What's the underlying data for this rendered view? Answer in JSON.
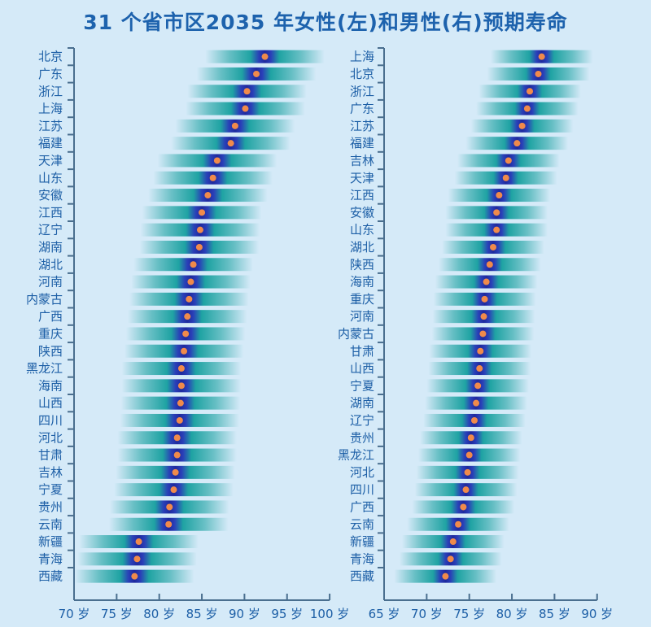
{
  "title": "31 个省市区2035 年女性(左)和男性(右)预期寿命",
  "colors": {
    "background": "#d5eaf8",
    "text": "#1d5fa6",
    "dot": "#f08a4b",
    "band_center": "#1e2fa8",
    "band_mid": "#1fa3a3"
  },
  "chart_data": [
    {
      "type": "scatter",
      "series_label": "女性(左)",
      "xlim": [
        70,
        100
      ],
      "x_ticks": [
        "70 岁",
        "75 岁",
        "80 岁",
        "85 岁",
        "90 岁",
        "95 岁",
        "100 岁"
      ],
      "tick_values": [
        70,
        75,
        80,
        85,
        90,
        95,
        100
      ],
      "categories": [
        "北京",
        "广东",
        "浙江",
        "上海",
        "江苏",
        "福建",
        "天津",
        "山东",
        "安徽",
        "江西",
        "辽宁",
        "湖南",
        "湖北",
        "河南",
        "内蒙古",
        "广西",
        "重庆",
        "陕西",
        "黑龙江",
        "海南",
        "山西",
        "四川",
        "河北",
        "甘肃",
        "吉林",
        "宁夏",
        "贵州",
        "云南",
        "新疆",
        "青海",
        "西藏"
      ],
      "values": [
        92.4,
        91.4,
        90.3,
        90.1,
        88.9,
        88.4,
        86.8,
        86.3,
        85.7,
        85.0,
        84.8,
        84.7,
        84.0,
        83.7,
        83.5,
        83.3,
        83.1,
        82.9,
        82.6,
        82.6,
        82.5,
        82.4,
        82.1,
        82.1,
        81.9,
        81.7,
        81.2,
        81.1,
        77.6,
        77.4,
        77.1
      ]
    },
    {
      "type": "scatter",
      "series_label": "男性(右)",
      "xlim": [
        65,
        90
      ],
      "x_ticks": [
        "65 岁",
        "70 岁",
        "75 岁",
        "80 岁",
        "85 岁",
        "90 岁"
      ],
      "tick_values": [
        65,
        70,
        75,
        80,
        85,
        90
      ],
      "categories": [
        "上海",
        "北京",
        "浙江",
        "广东",
        "江苏",
        "福建",
        "吉林",
        "天津",
        "江西",
        "安徽",
        "山东",
        "湖北",
        "陕西",
        "海南",
        "重庆",
        "河南",
        "内蒙古",
        "甘肃",
        "山西",
        "宁夏",
        "湖南",
        "辽宁",
        "贵州",
        "黑龙江",
        "河北",
        "四川",
        "广西",
        "云南",
        "新疆",
        "青海",
        "西藏"
      ],
      "values": [
        83.5,
        83.1,
        82.1,
        81.8,
        81.2,
        80.6,
        79.6,
        79.3,
        78.5,
        78.2,
        78.2,
        77.8,
        77.4,
        77.0,
        76.8,
        76.7,
        76.6,
        76.3,
        76.2,
        76.0,
        75.8,
        75.6,
        75.2,
        75.0,
        74.8,
        74.6,
        74.3,
        73.7,
        73.1,
        72.8,
        72.2
      ]
    }
  ]
}
